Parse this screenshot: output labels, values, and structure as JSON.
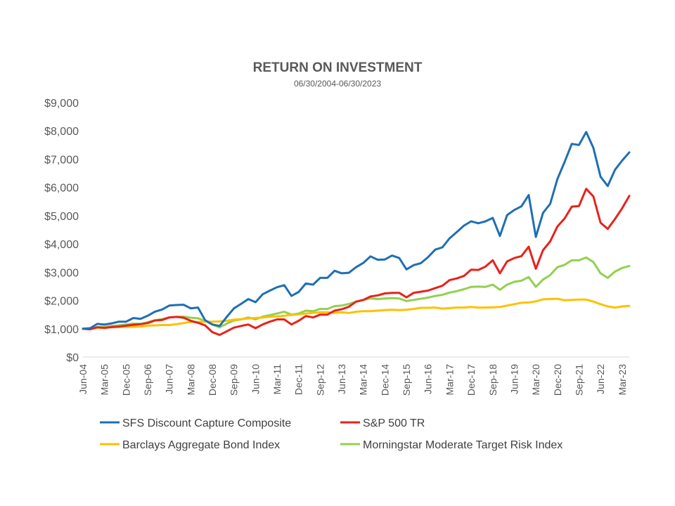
{
  "chart_data": {
    "type": "line",
    "title": "RETURN ON INVESTMENT",
    "subtitle": "06/30/2004-06/30/2023",
    "xlabel": "",
    "ylabel": "",
    "ylim": [
      0,
      9000
    ],
    "yticks": [
      0,
      1000,
      2000,
      3000,
      4000,
      5000,
      6000,
      7000,
      8000,
      9000
    ],
    "ytick_labels": [
      "$0",
      "$1,000",
      "$2,000",
      "$3,000",
      "$4,000",
      "$5,000",
      "$6,000",
      "$7,000",
      "$8,000",
      "$9,000"
    ],
    "x_tick_labels": [
      "Jun-04",
      "Mar-05",
      "Dec-05",
      "Sep-06",
      "Jun-07",
      "Mar-08",
      "Dec-08",
      "Sep-09",
      "Jun-10",
      "Mar-11",
      "Dec-11",
      "Sep-12",
      "Jun-13",
      "Mar-14",
      "Dec-14",
      "Sep-15",
      "Jun-16",
      "Mar-17",
      "Dec-17",
      "Sep-18",
      "Jun-19",
      "Mar-20",
      "Dec-20",
      "Sep-21",
      "Jun-22",
      "Mar-23"
    ],
    "x_note": "quarterly observations from Jun-04 to Jun-23 (77 points); tick label every third quarter",
    "grid": false,
    "legend_position": "bottom",
    "series": [
      {
        "name": "SFS Discount Capture Composite",
        "color": "#1f6fb4",
        "values": [
          1000,
          1020,
          1170,
          1150,
          1190,
          1250,
          1250,
          1380,
          1350,
          1460,
          1600,
          1680,
          1820,
          1840,
          1850,
          1720,
          1750,
          1300,
          1150,
          1100,
          1420,
          1720,
          1880,
          2050,
          1940,
          2220,
          2350,
          2470,
          2540,
          2160,
          2300,
          2600,
          2560,
          2800,
          2800,
          3050,
          2960,
          2980,
          3180,
          3330,
          3560,
          3440,
          3450,
          3590,
          3500,
          3100,
          3250,
          3320,
          3530,
          3800,
          3880,
          4200,
          4420,
          4650,
          4800,
          4730,
          4800,
          4920,
          4280,
          5020,
          5200,
          5330,
          5730,
          4250,
          5100,
          5420,
          6300,
          6900,
          7540,
          7500,
          7960,
          7400,
          6380,
          6050,
          6620,
          6950,
          7240
        ]
      },
      {
        "name": "S&P 500 TR",
        "color": "#e8221b",
        "values": [
          1000,
          980,
          1050,
          1030,
          1060,
          1080,
          1110,
          1140,
          1160,
          1200,
          1290,
          1310,
          1400,
          1420,
          1390,
          1280,
          1210,
          1120,
          880,
          780,
          910,
          1040,
          1100,
          1150,
          1020,
          1150,
          1250,
          1330,
          1330,
          1150,
          1280,
          1450,
          1400,
          1500,
          1500,
          1640,
          1690,
          1780,
          1960,
          2020,
          2140,
          2180,
          2250,
          2270,
          2270,
          2110,
          2270,
          2310,
          2350,
          2440,
          2520,
          2720,
          2780,
          2870,
          3090,
          3080,
          3200,
          3420,
          2960,
          3380,
          3500,
          3570,
          3900,
          3120,
          3780,
          4090,
          4620,
          4900,
          5320,
          5340,
          5950,
          5680,
          4750,
          4530,
          4880,
          5260,
          5700
        ]
      },
      {
        "name": "Barclays Aggregate Bond Index",
        "color": "#ffc000",
        "values": [
          1000,
          1020,
          1040,
          1040,
          1050,
          1060,
          1070,
          1070,
          1080,
          1110,
          1120,
          1130,
          1130,
          1160,
          1200,
          1240,
          1240,
          1250,
          1250,
          1260,
          1280,
          1320,
          1340,
          1360,
          1380,
          1400,
          1420,
          1440,
          1460,
          1490,
          1510,
          1540,
          1560,
          1580,
          1580,
          1560,
          1580,
          1560,
          1600,
          1620,
          1620,
          1640,
          1660,
          1670,
          1660,
          1670,
          1700,
          1740,
          1740,
          1750,
          1710,
          1730,
          1750,
          1750,
          1770,
          1750,
          1750,
          1760,
          1770,
          1820,
          1870,
          1920,
          1930,
          1970,
          2040,
          2050,
          2060,
          2010,
          2020,
          2030,
          2030,
          1960,
          1870,
          1790,
          1750,
          1790,
          1810
        ]
      },
      {
        "name": "Morningstar Moderate Target Risk Index",
        "color": "#92d050",
        "values": [
          1000,
          1010,
          1060,
          1070,
          1100,
          1120,
          1150,
          1180,
          1170,
          1230,
          1300,
          1340,
          1400,
          1420,
          1430,
          1390,
          1370,
          1280,
          1150,
          1050,
          1180,
          1290,
          1330,
          1400,
          1330,
          1430,
          1480,
          1540,
          1600,
          1500,
          1540,
          1640,
          1620,
          1700,
          1700,
          1800,
          1820,
          1880,
          1960,
          2020,
          2070,
          2050,
          2070,
          2080,
          2070,
          1980,
          2020,
          2060,
          2100,
          2160,
          2200,
          2280,
          2330,
          2400,
          2480,
          2490,
          2480,
          2560,
          2380,
          2560,
          2660,
          2700,
          2830,
          2480,
          2740,
          2900,
          3180,
          3260,
          3420,
          3420,
          3520,
          3360,
          2960,
          2800,
          3020,
          3150,
          3220
        ]
      }
    ]
  }
}
